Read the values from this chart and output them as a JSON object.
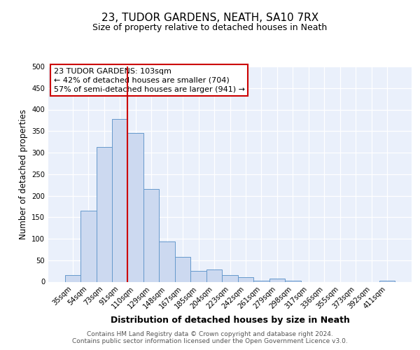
{
  "title1": "23, TUDOR GARDENS, NEATH, SA10 7RX",
  "title2": "Size of property relative to detached houses in Neath",
  "xlabel": "Distribution of detached houses by size in Neath",
  "ylabel": "Number of detached properties",
  "bar_labels": [
    "35sqm",
    "54sqm",
    "73sqm",
    "91sqm",
    "110sqm",
    "129sqm",
    "148sqm",
    "167sqm",
    "185sqm",
    "204sqm",
    "223sqm",
    "242sqm",
    "261sqm",
    "279sqm",
    "298sqm",
    "317sqm",
    "336sqm",
    "355sqm",
    "373sqm",
    "392sqm",
    "411sqm"
  ],
  "bar_values": [
    15,
    165,
    313,
    378,
    345,
    215,
    93,
    57,
    25,
    29,
    15,
    10,
    3,
    8,
    3,
    0,
    0,
    0,
    0,
    0,
    2
  ],
  "bar_color": "#ccd9f0",
  "bar_edge_color": "#6699cc",
  "vline_color": "#cc0000",
  "vline_position": 3.5,
  "annotation_line1": "23 TUDOR GARDENS: 103sqm",
  "annotation_line2": "← 42% of detached houses are smaller (704)",
  "annotation_line3": "57% of semi-detached houses are larger (941) →",
  "ylim": [
    0,
    500
  ],
  "yticks": [
    0,
    50,
    100,
    150,
    200,
    250,
    300,
    350,
    400,
    450,
    500
  ],
  "bg_color": "#eaf0fb",
  "footer_line1": "Contains HM Land Registry data © Crown copyright and database right 2024.",
  "footer_line2": "Contains public sector information licensed under the Open Government Licence v3.0."
}
